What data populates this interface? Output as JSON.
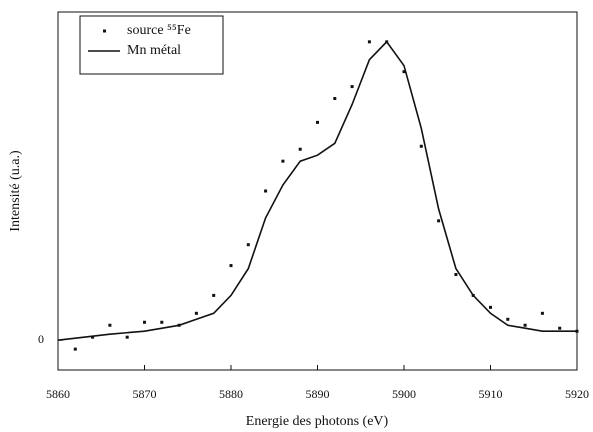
{
  "chart_data": {
    "type": "scatter-line",
    "xlabel": "Energie des photons (eV)",
    "ylabel": "Intensité (u.a.)",
    "xlim": [
      5860,
      5920
    ],
    "xticks": [
      5860,
      5870,
      5880,
      5890,
      5900,
      5910,
      5920
    ],
    "ylim": [
      -0.1,
      1.1
    ],
    "yticks": [
      0
    ],
    "legend": "upper left",
    "series": [
      {
        "name": "source ⁵⁵Fe",
        "color": "#111111",
        "kind": "points",
        "x": [
          5862,
          5864,
          5866,
          5868,
          5870,
          5872,
          5874,
          5876,
          5878,
          5880,
          5882,
          5884,
          5886,
          5888,
          5890,
          5892,
          5894,
          5896,
          5898,
          5900,
          5902,
          5904,
          5906,
          5908,
          5910,
          5912,
          5914,
          5916,
          5918,
          5920
        ],
        "values": [
          -0.03,
          0.01,
          0.05,
          0.01,
          0.06,
          0.06,
          0.05,
          0.09,
          0.15,
          0.25,
          0.32,
          0.5,
          0.6,
          0.64,
          0.73,
          0.81,
          0.85,
          1.0,
          1.0,
          0.9,
          0.65,
          0.4,
          0.22,
          0.15,
          0.11,
          0.07,
          0.05,
          0.09,
          0.04,
          0.03
        ]
      },
      {
        "name": "Mn métal",
        "color": "#111111",
        "kind": "line",
        "x": [
          5860,
          5866,
          5870,
          5874,
          5876,
          5878,
          5880,
          5882,
          5884,
          5886,
          5888,
          5890,
          5892,
          5894,
          5896,
          5898,
          5900,
          5902,
          5904,
          5906,
          5908,
          5910,
          5912,
          5914,
          5916,
          5920
        ],
        "values": [
          0.0,
          0.02,
          0.03,
          0.05,
          0.07,
          0.09,
          0.15,
          0.24,
          0.41,
          0.52,
          0.6,
          0.62,
          0.66,
          0.79,
          0.94,
          1.0,
          0.92,
          0.71,
          0.44,
          0.24,
          0.15,
          0.09,
          0.05,
          0.04,
          0.03,
          0.03
        ]
      }
    ]
  }
}
